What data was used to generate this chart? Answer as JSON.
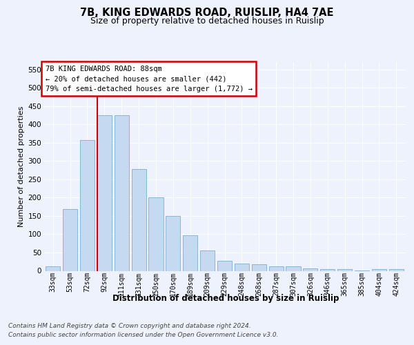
{
  "title1": "7B, KING EDWARDS ROAD, RUISLIP, HA4 7AE",
  "title2": "Size of property relative to detached houses in Ruislip",
  "xlabel": "Distribution of detached houses by size in Ruislip",
  "ylabel": "Number of detached properties",
  "categories": [
    "33sqm",
    "53sqm",
    "72sqm",
    "92sqm",
    "111sqm",
    "131sqm",
    "150sqm",
    "170sqm",
    "189sqm",
    "209sqm",
    "229sqm",
    "248sqm",
    "268sqm",
    "287sqm",
    "307sqm",
    "326sqm",
    "346sqm",
    "365sqm",
    "385sqm",
    "404sqm",
    "424sqm"
  ],
  "values": [
    13,
    168,
    358,
    425,
    425,
    277,
    201,
    149,
    97,
    55,
    28,
    20,
    17,
    13,
    13,
    6,
    5,
    4,
    1,
    4,
    4
  ],
  "bar_color": "#c5d9f1",
  "bar_edge_color": "#7aafd4",
  "background_color": "#eef2fc",
  "grid_color": "#ffffff",
  "vline_color": "#cc0000",
  "vline_index": 3,
  "annotation_line1": "7B KING EDWARDS ROAD: 88sqm",
  "annotation_line2": "← 20% of detached houses are smaller (442)",
  "annotation_line3": "79% of semi-detached houses are larger (1,772) →",
  "ylim_max": 570,
  "yticks": [
    0,
    50,
    100,
    150,
    200,
    250,
    300,
    350,
    400,
    450,
    500,
    550
  ],
  "footnote1": "Contains HM Land Registry data © Crown copyright and database right 2024.",
  "footnote2": "Contains public sector information licensed under the Open Government Licence v3.0.",
  "title1_fontsize": 10.5,
  "title2_fontsize": 9,
  "tick_fontsize": 7,
  "ylabel_fontsize": 8,
  "xlabel_fontsize": 8.5,
  "ann_fontsize": 7.5,
  "footnote_fontsize": 6.5
}
